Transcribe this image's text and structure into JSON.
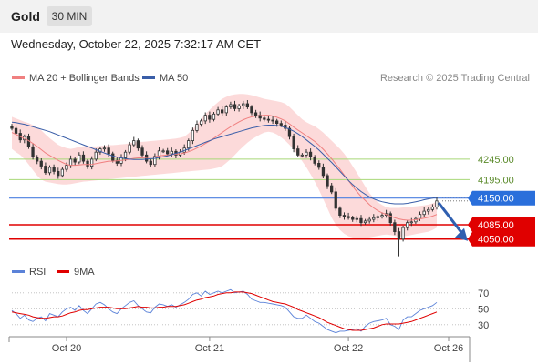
{
  "header": {
    "instrument": "Gold",
    "timeframe": "30 MIN",
    "datetime": "Wednesday, October 22, 2025 7:32:17 AM CET"
  },
  "legend": {
    "ma20": "MA 20 + Bollinger Bands",
    "ma50": "MA 50",
    "credit": "Research © 2025 Trading Central",
    "rsi": "RSI",
    "ma9": "9MA"
  },
  "colors": {
    "ma20": "#f08080",
    "band_fill": "#fbd3d3",
    "ma50": "#3a5ea8",
    "candle": "#333333",
    "green_level": "#a8d878",
    "blue_level": "#4a7fe0",
    "red_level": "#e00000",
    "rsi": "#5b82d8",
    "rsi_ma": "#e00000",
    "arrow": "#2f5fb0"
  },
  "chart_data": [
    {
      "type": "line",
      "title": "",
      "series_kind": "candlestick with MA 20, Bollinger Bands and MA 50",
      "x_ticks": [
        "Oct 20",
        "Oct 21",
        "Oct 22",
        "Oct 26"
      ],
      "ylim": [
        4005,
        4420
      ],
      "levels": [
        {
          "value": 4245.0,
          "label": "4245.00",
          "kind": "resistance"
        },
        {
          "value": 4195.0,
          "label": "4195.00",
          "kind": "resistance"
        },
        {
          "value": 4150.0,
          "label": "4150.00",
          "kind": "pivot"
        },
        {
          "value": 4085.0,
          "label": "4085.00",
          "kind": "target"
        },
        {
          "value": 4050.0,
          "label": "4050.00",
          "kind": "target"
        }
      ],
      "close": [
        4320,
        4308,
        4292,
        4300,
        4275,
        4250,
        4240,
        4228,
        4212,
        4225,
        4215,
        4205,
        4220,
        4230,
        4245,
        4238,
        4255,
        4240,
        4228,
        4245,
        4262,
        4270,
        4272,
        4258,
        4242,
        4235,
        4248,
        4262,
        4280,
        4290,
        4272,
        4255,
        4240,
        4232,
        4252,
        4265,
        4265,
        4258,
        4264,
        4255,
        4262,
        4272,
        4290,
        4315,
        4330,
        4338,
        4352,
        4342,
        4355,
        4365,
        4358,
        4372,
        4378,
        4368,
        4375,
        4380,
        4372,
        4358,
        4352,
        4345,
        4342,
        4340,
        4338,
        4332,
        4328,
        4320,
        4300,
        4270,
        4255,
        4255,
        4262,
        4250,
        4235,
        4225,
        4205,
        4180,
        4165,
        4125,
        4108,
        4105,
        4102,
        4098,
        4100,
        4090,
        4094,
        4098,
        4102,
        4105,
        4108,
        4112,
        4090,
        4068,
        4050,
        4078,
        4090,
        4092,
        4100,
        4110,
        4118,
        4122,
        4128,
        4143
      ],
      "ma20": [
        4310,
        4305,
        4300,
        4295,
        4290,
        4283,
        4276,
        4268,
        4260,
        4254,
        4248,
        4242,
        4237,
        4232,
        4230,
        4230,
        4231,
        4232,
        4232,
        4232,
        4234,
        4236,
        4238,
        4240,
        4240,
        4241,
        4242,
        4243,
        4245,
        4247,
        4248,
        4248,
        4249,
        4250,
        4251,
        4253,
        4254,
        4255,
        4256,
        4257,
        4258,
        4260,
        4263,
        4267,
        4272,
        4277,
        4283,
        4289,
        4296,
        4303,
        4310,
        4317,
        4324,
        4330,
        4336,
        4341,
        4345,
        4348,
        4350,
        4351,
        4352,
        4352,
        4350,
        4347,
        4343,
        4338,
        4331,
        4323,
        4316,
        4309,
        4302,
        4295,
        4288,
        4279,
        4269,
        4258,
        4246,
        4233,
        4220,
        4206,
        4193,
        4179,
        4166,
        4154,
        4144,
        4134,
        4126,
        4119,
        4114,
        4110,
        4106,
        4102,
        4099,
        4097,
        4096,
        4096,
        4097,
        4099,
        4101,
        4103,
        4106,
        4110
      ],
      "bb_upper": [
        4348,
        4344,
        4340,
        4336,
        4333,
        4328,
        4322,
        4315,
        4305,
        4296,
        4288,
        4280,
        4275,
        4272,
        4270,
        4272,
        4275,
        4276,
        4277,
        4276,
        4276,
        4277,
        4278,
        4279,
        4279,
        4280,
        4281,
        4282,
        4284,
        4286,
        4287,
        4287,
        4288,
        4289,
        4290,
        4291,
        4292,
        4293,
        4294,
        4295,
        4297,
        4300,
        4308,
        4318,
        4330,
        4342,
        4355,
        4365,
        4375,
        4384,
        4392,
        4397,
        4401,
        4403,
        4404,
        4404,
        4403,
        4401,
        4398,
        4395,
        4392,
        4390,
        4388,
        4386,
        4384,
        4380,
        4372,
        4362,
        4352,
        4342,
        4335,
        4330,
        4325,
        4318,
        4310,
        4300,
        4290,
        4280,
        4270,
        4258,
        4244,
        4228,
        4212,
        4195,
        4178,
        4162,
        4150,
        4140,
        4133,
        4128,
        4126,
        4126,
        4126,
        4127,
        4128,
        4129,
        4130,
        4131,
        4132,
        4134,
        4137,
        4141
      ],
      "bb_lower": [
        4270,
        4262,
        4255,
        4245,
        4232,
        4218,
        4205,
        4195,
        4190,
        4188,
        4186,
        4184,
        4183,
        4183,
        4184,
        4186,
        4188,
        4190,
        4191,
        4192,
        4193,
        4194,
        4195,
        4196,
        4197,
        4198,
        4199,
        4200,
        4201,
        4202,
        4203,
        4204,
        4205,
        4206,
        4207,
        4208,
        4209,
        4210,
        4211,
        4212,
        4213,
        4214,
        4215,
        4216,
        4217,
        4218,
        4219,
        4220,
        4222,
        4224,
        4228,
        4236,
        4245,
        4255,
        4266,
        4276,
        4285,
        4293,
        4299,
        4305,
        4310,
        4312,
        4310,
        4305,
        4298,
        4290,
        4280,
        4268,
        4255,
        4240,
        4225,
        4208,
        4190,
        4170,
        4148,
        4125,
        4102,
        4085,
        4072,
        4063,
        4057,
        4054,
        4052,
        4052,
        4053,
        4054,
        4056,
        4058,
        4060,
        4061,
        4060,
        4058,
        4056,
        4057,
        4058,
        4060,
        4062,
        4064,
        4066,
        4068,
        4072,
        4078
      ],
      "ma50": [
        4335,
        4334,
        4332,
        4330,
        4327,
        4324,
        4321,
        4318,
        4315,
        4312,
        4308,
        4304,
        4300,
        4296,
        4292,
        4288,
        4284,
        4280,
        4276,
        4272,
        4268,
        4264,
        4260,
        4256,
        4253,
        4250,
        4248,
        4246,
        4245,
        4244,
        4244,
        4244,
        4245,
        4246,
        4247,
        4249,
        4251,
        4253,
        4256,
        4259,
        4262,
        4266,
        4270,
        4274,
        4278,
        4282,
        4286,
        4290,
        4294,
        4297,
        4300,
        4303,
        4306,
        4309,
        4312,
        4315,
        4318,
        4321,
        4323,
        4325,
        4327,
        4328,
        4328,
        4327,
        4325,
        4322,
        4318,
        4313,
        4307,
        4300,
        4292,
        4284,
        4276,
        4267,
        4257,
        4247,
        4237,
        4226,
        4215,
        4204,
        4193,
        4183,
        4174,
        4166,
        4159,
        4153,
        4148,
        4144,
        4141,
        4139,
        4137,
        4136,
        4136,
        4136,
        4137,
        4139,
        4141,
        4143,
        4146,
        4148,
        4150,
        4152
      ]
    },
    {
      "type": "line",
      "title": "",
      "series_kind": "RSI with 9MA",
      "x_ticks": [
        "Oct 20",
        "Oct 21",
        "Oct 22",
        "Oct 26"
      ],
      "y_ticks": [
        70,
        50,
        30
      ],
      "ylim": [
        15,
        80
      ],
      "rsi": [
        48,
        44,
        38,
        42,
        36,
        34,
        38,
        40,
        35,
        44,
        42,
        40,
        46,
        50,
        52,
        48,
        54,
        48,
        44,
        50,
        56,
        58,
        55,
        50,
        46,
        44,
        50,
        54,
        58,
        60,
        54,
        50,
        46,
        45,
        52,
        56,
        55,
        53,
        55,
        52,
        55,
        58,
        62,
        68,
        70,
        66,
        72,
        68,
        70,
        72,
        70,
        72,
        74,
        70,
        71,
        72,
        68,
        62,
        60,
        58,
        58,
        57,
        56,
        55,
        54,
        52,
        46,
        40,
        38,
        38,
        42,
        38,
        34,
        32,
        28,
        24,
        22,
        20,
        22,
        22,
        23,
        24,
        25,
        22,
        28,
        32,
        34,
        35,
        36,
        38,
        30,
        28,
        24,
        36,
        40,
        40,
        44,
        48,
        50,
        52,
        54,
        58
      ],
      "rsi_ma": [
        46,
        45,
        44,
        43,
        42,
        40,
        39,
        38,
        38,
        39,
        40,
        40,
        41,
        43,
        45,
        46,
        48,
        49,
        49,
        50,
        51,
        52,
        52,
        52,
        51,
        50,
        50,
        50,
        51,
        52,
        53,
        52,
        52,
        51,
        51,
        52,
        52,
        53,
        53,
        53,
        54,
        55,
        57,
        59,
        61,
        62,
        64,
        65,
        66,
        68,
        69,
        70,
        70,
        71,
        71,
        71,
        70,
        69,
        67,
        65,
        63,
        61,
        59,
        58,
        57,
        56,
        54,
        52,
        49,
        47,
        45,
        43,
        41,
        39,
        36,
        33,
        31,
        29,
        27,
        25,
        24,
        23,
        23,
        23,
        24,
        25,
        26,
        28,
        30,
        31,
        31,
        31,
        31,
        32,
        33,
        34,
        36,
        38,
        40,
        42,
        44,
        46
      ]
    }
  ]
}
